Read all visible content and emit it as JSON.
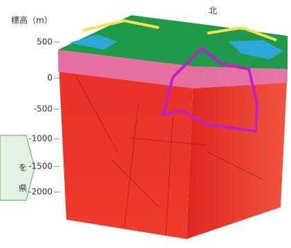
{
  "axis_label": "標高（m）",
  "north_label": "北",
  "ticks": [
    500,
    0,
    -500,
    -1000,
    -1500,
    -2000
  ],
  "callout": {
    "lines": [
      "を",
      "県"
    ]
  }
}
